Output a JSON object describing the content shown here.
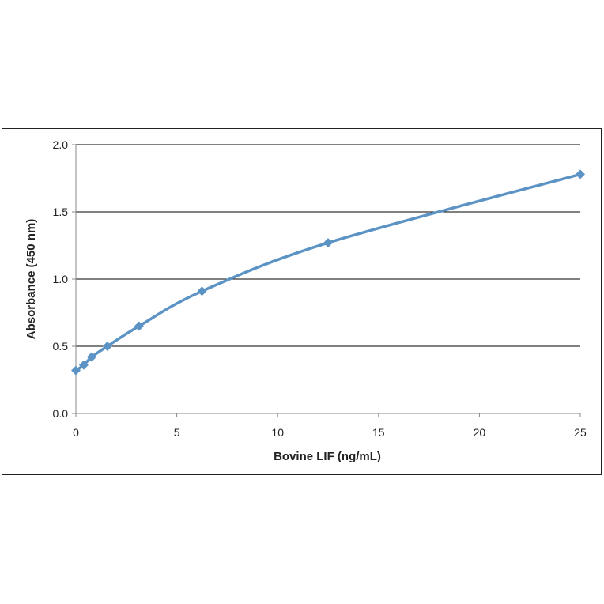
{
  "chart_data": {
    "type": "scatter",
    "title": "",
    "xlabel": "Bovine LIF (ng/mL)",
    "ylabel": "Absorbance (450 nm)",
    "xlim": [
      0,
      25
    ],
    "ylim": [
      0,
      2
    ],
    "x_ticks": [
      "0",
      "5",
      "10",
      "15",
      "20",
      "25"
    ],
    "y_ticks": [
      "0.0",
      "0.5",
      "1.0",
      "1.5",
      "2.0"
    ],
    "grid": "horizontal",
    "legend": "none",
    "series": [
      {
        "x": [
          0,
          0.39,
          0.78,
          1.56,
          3.13,
          6.25,
          12.5,
          25
        ],
        "y": [
          0.32,
          0.36,
          0.42,
          0.5,
          0.65,
          0.91,
          1.27,
          1.78
        ],
        "marker": "diamond",
        "line": "smooth",
        "color": "#5b93c4"
      }
    ]
  }
}
